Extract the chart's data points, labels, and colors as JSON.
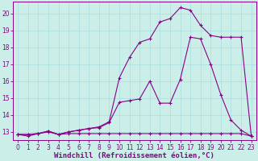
{
  "background_color": "#cceee8",
  "grid_color": "#aadddd",
  "line_color": "#880088",
  "xlabel": "Windchill (Refroidissement éolien,°C)",
  "xlim": [
    -0.5,
    23.5
  ],
  "ylim": [
    12.5,
    20.7
  ],
  "yticks": [
    13,
    14,
    15,
    16,
    17,
    18,
    19,
    20
  ],
  "xticks": [
    0,
    1,
    2,
    3,
    4,
    5,
    6,
    7,
    8,
    9,
    10,
    11,
    12,
    13,
    14,
    15,
    16,
    17,
    18,
    19,
    20,
    21,
    22,
    23
  ],
  "line1_x": [
    0,
    1,
    2,
    3,
    4,
    5,
    6,
    7,
    8,
    9,
    10,
    11,
    12,
    13,
    14,
    15,
    16,
    17,
    18,
    19,
    20,
    21,
    22,
    23
  ],
  "line1_y": [
    12.85,
    12.75,
    12.9,
    13.0,
    12.85,
    12.9,
    12.9,
    12.9,
    12.9,
    12.9,
    12.9,
    12.9,
    12.9,
    12.9,
    12.9,
    12.9,
    12.9,
    12.9,
    12.9,
    12.9,
    12.9,
    12.9,
    12.9,
    12.75
  ],
  "line2_x": [
    0,
    1,
    2,
    3,
    4,
    5,
    6,
    7,
    8,
    9,
    10,
    11,
    12,
    13,
    14,
    15,
    16,
    17,
    18,
    19,
    20,
    21,
    22,
    23
  ],
  "line2_y": [
    12.85,
    12.85,
    12.9,
    13.05,
    12.85,
    13.0,
    13.1,
    13.2,
    13.25,
    13.55,
    14.75,
    14.85,
    14.95,
    16.0,
    14.7,
    14.7,
    16.1,
    18.6,
    18.5,
    17.0,
    15.2,
    13.7,
    13.1,
    12.75
  ],
  "line3_x": [
    0,
    1,
    2,
    3,
    4,
    5,
    6,
    7,
    8,
    9,
    10,
    11,
    12,
    13,
    14,
    15,
    16,
    17,
    18,
    19,
    20,
    21,
    22,
    23
  ],
  "line3_y": [
    12.85,
    12.85,
    12.9,
    13.05,
    12.85,
    13.0,
    13.1,
    13.2,
    13.3,
    13.6,
    16.2,
    17.4,
    18.3,
    18.5,
    19.5,
    19.7,
    20.35,
    20.2,
    19.3,
    18.7,
    18.6,
    18.6,
    18.6,
    12.75
  ],
  "marker": "+",
  "markersize": 3,
  "linewidth": 0.8,
  "tick_fontsize": 5.5,
  "xlabel_fontsize": 6.5
}
